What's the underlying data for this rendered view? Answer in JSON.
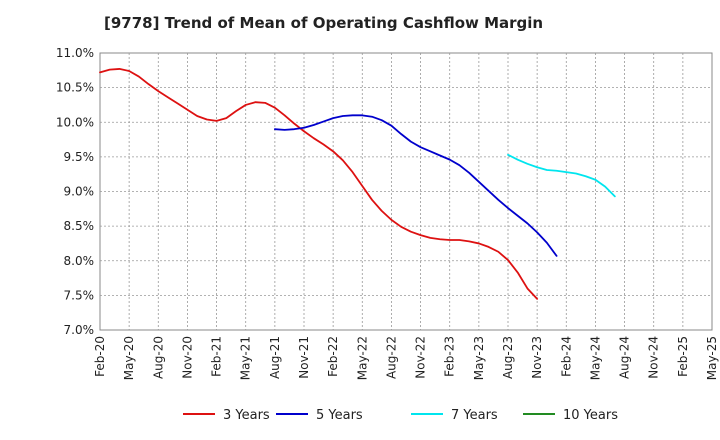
{
  "chart_data": {
    "type": "line",
    "title": "[9778]  Trend of Mean of Operating Cashflow Margin",
    "xlabel": "",
    "ylabel": "",
    "ylim": [
      7.0,
      11.0
    ],
    "y_ticks": [
      "7.0%",
      "7.5%",
      "8.0%",
      "8.5%",
      "9.0%",
      "9.5%",
      "10.0%",
      "10.5%",
      "11.0%"
    ],
    "y_tick_values": [
      7.0,
      7.5,
      8.0,
      8.5,
      9.0,
      9.5,
      10.0,
      10.5,
      11.0
    ],
    "x_ticks": [
      "Feb-20",
      "May-20",
      "Aug-20",
      "Nov-20",
      "Feb-21",
      "May-21",
      "Aug-21",
      "Nov-21",
      "Feb-22",
      "May-22",
      "Aug-22",
      "Nov-22",
      "Feb-23",
      "May-23",
      "Aug-23",
      "Nov-23",
      "Feb-24",
      "May-24",
      "Aug-24",
      "Nov-24",
      "Feb-25",
      "May-25"
    ],
    "grid": true,
    "legend_position": "bottom",
    "series": [
      {
        "name": "3 Years",
        "color": "#dd1111",
        "start_index": 0,
        "values": [
          10.72,
          10.76,
          10.77,
          10.74,
          10.66,
          10.55,
          10.45,
          10.36,
          10.27,
          10.18,
          10.09,
          10.04,
          10.02,
          10.06,
          10.16,
          10.25,
          10.29,
          10.28,
          10.21,
          10.1,
          9.98,
          9.87,
          9.77,
          9.68,
          9.58,
          9.45,
          9.28,
          9.08,
          8.88,
          8.72,
          8.59,
          8.49,
          8.42,
          8.37,
          8.33,
          8.31,
          8.3,
          8.3,
          8.28,
          8.25,
          8.2,
          8.13,
          8.01,
          7.83,
          7.6,
          7.45
        ]
      },
      {
        "name": "5 Years",
        "color": "#0000cc",
        "start_index": 18,
        "values": [
          9.9,
          9.89,
          9.9,
          9.92,
          9.96,
          10.01,
          10.06,
          10.09,
          10.1,
          10.1,
          10.08,
          10.03,
          9.95,
          9.83,
          9.72,
          9.64,
          9.58,
          9.52,
          9.46,
          9.38,
          9.27,
          9.14,
          9.01,
          8.88,
          8.76,
          8.65,
          8.54,
          8.41,
          8.26,
          8.07
        ]
      },
      {
        "name": "7 Years",
        "color": "#00e5ee",
        "start_index": 42,
        "values": [
          9.53,
          9.46,
          9.4,
          9.35,
          9.31,
          9.3,
          9.28,
          9.26,
          9.22,
          9.17,
          9.07,
          8.93
        ]
      },
      {
        "name": "10 Years",
        "color": "#228b22",
        "start_index": 0,
        "values": []
      }
    ]
  }
}
